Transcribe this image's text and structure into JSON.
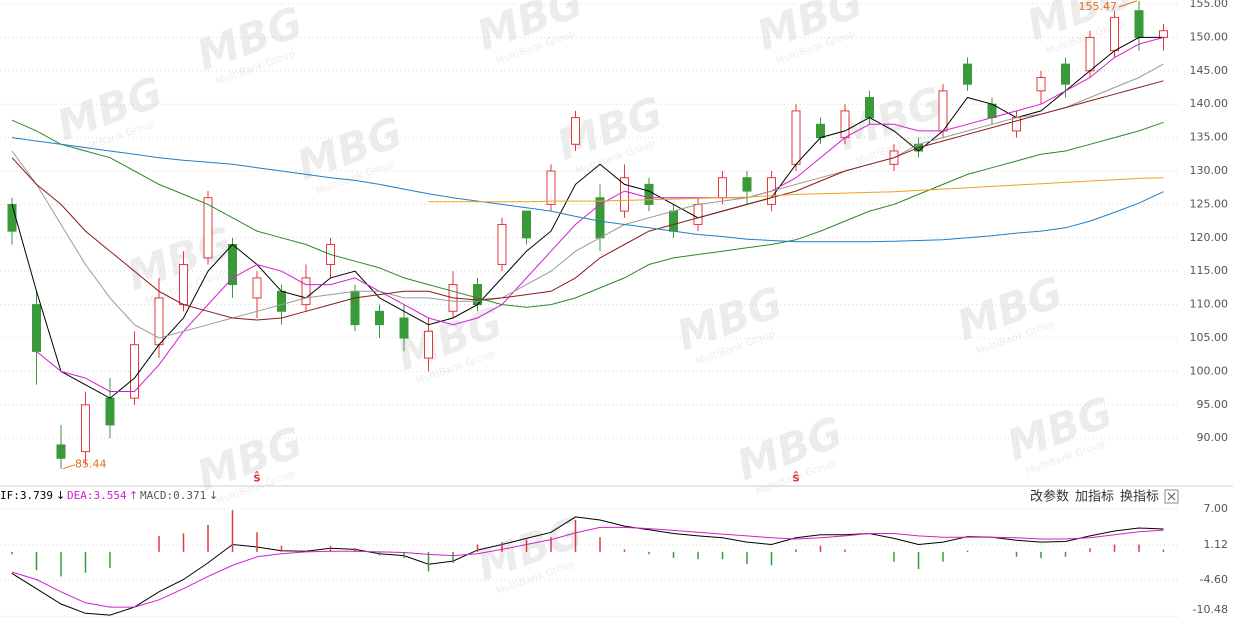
{
  "chart_data": [
    {
      "type": "candlestick",
      "open": [
        125,
        110,
        89,
        88,
        96,
        96,
        104,
        110,
        117,
        119,
        111,
        112,
        110,
        116,
        112,
        109,
        108,
        102,
        109,
        113,
        116,
        124,
        125,
        134,
        126,
        124,
        128,
        124,
        122,
        126,
        129,
        125,
        131,
        137,
        135,
        141,
        131,
        134,
        136,
        146,
        140,
        136,
        142,
        146,
        145,
        148,
        154,
        150
      ],
      "high": [
        126,
        112,
        92,
        97,
        99,
        106,
        114,
        118,
        127,
        120,
        115,
        113,
        116,
        120,
        113,
        110,
        110,
        108,
        115,
        114,
        123,
        124,
        131,
        139,
        128,
        131,
        129,
        125,
        126,
        130,
        130,
        130,
        140,
        138,
        140,
        142,
        134,
        135,
        143,
        147,
        141,
        139,
        145,
        147,
        151,
        154,
        155.47,
        152
      ],
      "low": [
        119,
        98,
        85.44,
        86,
        90,
        95,
        102,
        109,
        116,
        111,
        108,
        107,
        109,
        114,
        106,
        105,
        103,
        100,
        108,
        109,
        115,
        119,
        124,
        133,
        118,
        123,
        124,
        120,
        121,
        125,
        125,
        124,
        130,
        134,
        134,
        137,
        130,
        132,
        135,
        142,
        137,
        135,
        140,
        141,
        144,
        147,
        148,
        148
      ],
      "close": [
        121,
        103,
        87,
        95,
        92,
        104,
        111,
        116,
        126,
        113,
        114,
        109,
        114,
        119,
        107,
        107,
        105,
        106,
        113,
        110,
        122,
        120,
        130,
        138,
        120,
        129,
        125,
        121,
        125,
        129,
        127,
        129,
        139,
        135,
        139,
        138,
        133,
        133,
        142,
        143,
        138,
        138,
        144,
        143,
        150,
        153,
        150,
        151
      ],
      "up_color": "#e0393e",
      "down_color": "#3a9a3a",
      "annotation_color": "#e07020",
      "event_marks": [
        null,
        null,
        null,
        null,
        null,
        null,
        null,
        null,
        null,
        null,
        "ŝ",
        null,
        null,
        null,
        null,
        null,
        null,
        null,
        null,
        null,
        null,
        null,
        null,
        null,
        null,
        null,
        null,
        null,
        null,
        null,
        null,
        null,
        "ŝ",
        null,
        null,
        null,
        null,
        null,
        null,
        null,
        null,
        null,
        null,
        null,
        null,
        null,
        null,
        null
      ],
      "lines": [
        {
          "color": "#000000",
          "values": [
            125,
            112,
            100,
            98,
            96,
            99,
            104,
            108,
            115,
            119,
            116,
            112,
            111,
            114,
            115,
            111,
            109,
            107,
            108,
            110,
            114,
            118,
            121,
            128,
            131,
            128,
            127,
            125,
            123,
            124,
            125,
            126,
            131,
            135,
            136,
            138,
            136,
            133,
            136,
            141,
            140,
            138,
            139,
            142,
            145,
            148,
            150,
            150
          ]
        },
        {
          "color": "#d020d0",
          "values": [
            null,
            103,
            100,
            99,
            97,
            97,
            101,
            106,
            110,
            114,
            116,
            115,
            113,
            113,
            114,
            112,
            110,
            108,
            107,
            108,
            110,
            114,
            118,
            122,
            125,
            127,
            126,
            126,
            126,
            126,
            126,
            127,
            129,
            132,
            135,
            137,
            137,
            136,
            136,
            137,
            138,
            139,
            140,
            142,
            144,
            147,
            149,
            150
          ]
        },
        {
          "color": "#9a9a9a",
          "values": [
            133,
            128,
            122,
            116,
            111,
            107,
            105,
            106,
            107,
            108,
            109,
            110,
            111,
            111.5,
            112,
            112,
            111,
            111,
            110.5,
            110.5,
            111,
            113,
            115,
            118,
            120,
            122,
            123,
            124,
            125,
            125.5,
            126,
            127,
            128,
            129,
            130,
            131,
            132,
            134,
            135,
            136,
            137,
            138,
            138.5,
            139.5,
            141,
            142.5,
            144,
            146
          ]
        },
        {
          "color": "#8b1a1a",
          "values": [
            132,
            128,
            125,
            121,
            118,
            115,
            112,
            110,
            109,
            108,
            107.7,
            108,
            109,
            110,
            111,
            111.5,
            112,
            112,
            111,
            110.7,
            111,
            111.5,
            112,
            114,
            117,
            119,
            121,
            122,
            123,
            124,
            125,
            126,
            127,
            128.5,
            130,
            131,
            132,
            133.5,
            134.5,
            135.5,
            136.5,
            137.5,
            138.5,
            139.5,
            140.5,
            141.5,
            142.5,
            143.5
          ]
        },
        {
          "color": "#2a8a2a",
          "values": [
            137.6,
            136,
            134,
            133,
            132,
            130,
            128,
            126.5,
            125,
            123,
            121,
            120,
            119,
            117.5,
            116.5,
            115.5,
            114,
            113,
            112,
            111,
            110,
            109.6,
            110,
            111,
            112.5,
            114,
            116,
            117,
            117.5,
            118,
            118.5,
            119,
            119.7,
            121,
            122.5,
            124,
            125,
            126.5,
            128,
            129.5,
            130.5,
            131.5,
            132.5,
            133,
            134,
            135,
            136,
            137.3
          ]
        },
        {
          "color": "#1f7fc8",
          "values": [
            135,
            134.5,
            134,
            133.5,
            133,
            132.5,
            132,
            131.6,
            131.3,
            131,
            130.5,
            130,
            129.5,
            129,
            128.6,
            128,
            127.3,
            126.6,
            126,
            125.5,
            125,
            124.5,
            124,
            123.2,
            122.5,
            122,
            121.5,
            121,
            120.5,
            120.2,
            119.8,
            119.6,
            119.4,
            119.4,
            119.4,
            119.4,
            119.5,
            119.6,
            119.7,
            120,
            120.3,
            120.7,
            121,
            121.5,
            122.5,
            123.8,
            125.2,
            126.9
          ]
        },
        {
          "color": "#f0a020",
          "values": [
            null,
            null,
            null,
            null,
            null,
            null,
            null,
            null,
            null,
            null,
            null,
            null,
            null,
            null,
            null,
            null,
            null,
            125.4,
            125.4,
            125.4,
            125.4,
            125.4,
            125.5,
            125.5,
            125.5,
            125.6,
            125.7,
            125.8,
            125.9,
            126,
            126.1,
            126.3,
            126.5,
            126.6,
            126.7,
            126.8,
            126.9,
            127.1,
            127.3,
            127.5,
            127.7,
            127.9,
            128.1,
            128.3,
            128.5,
            128.7,
            128.9,
            129
          ]
        }
      ],
      "ylim": [
        83,
        155.6
      ],
      "yticks": [
        {
          "value": 90,
          "label": "90.00"
        },
        {
          "value": 95,
          "label": "95.00"
        },
        {
          "value": 100,
          "label": "100.00"
        },
        {
          "value": 105,
          "label": "105.00"
        },
        {
          "value": 110,
          "label": "110.00"
        },
        {
          "value": 115,
          "label": "115.00"
        },
        {
          "value": 120,
          "label": "120.00"
        },
        {
          "value": 125,
          "label": "125.00"
        },
        {
          "value": 130,
          "label": "130.00"
        },
        {
          "value": 135,
          "label": "135.00"
        },
        {
          "value": 140,
          "label": "140.00"
        },
        {
          "value": 145,
          "label": "145.00"
        },
        {
          "value": 150,
          "label": "150.00"
        },
        {
          "value": 155,
          "label": "155.00"
        }
      ],
      "grid": true
    },
    {
      "type": "macd",
      "series": [
        {
          "label": "IF:3.739",
          "arrow": "↓",
          "color": "#000000",
          "values": [
            -3.5,
            -6,
            -8.5,
            -10,
            -10.3,
            -9,
            -6.5,
            -4.5,
            -1.8,
            1.2,
            0.8,
            0.2,
            0.1,
            0.6,
            0.4,
            -0.3,
            -0.6,
            -2,
            -1.5,
            0.3,
            1.2,
            2.2,
            3.2,
            5.7,
            5.2,
            4.2,
            3.6,
            3,
            2.6,
            2.3,
            1.6,
            1.2,
            2.3,
            2.8,
            2.8,
            3,
            2.2,
            1.2,
            1.6,
            2.5,
            2.4,
            1.9,
            1.6,
            1.7,
            2.6,
            3.4,
            3.9,
            3.739
          ]
        },
        {
          "label": "DEA:3.554",
          "arrow": "↑",
          "color": "#d020d0",
          "values": [
            -3.3,
            -4.5,
            -6.5,
            -8.3,
            -9,
            -9,
            -7.8,
            -6,
            -4,
            -2.2,
            -0.8,
            -0.3,
            0,
            0.1,
            0.1,
            0,
            -0.1,
            -0.4,
            -0.6,
            -0.3,
            0.4,
            1.2,
            2,
            3.1,
            4,
            4,
            3.8,
            3.5,
            3.2,
            2.9,
            2.6,
            2.3,
            2.1,
            2.3,
            2.6,
            3,
            3,
            2.6,
            2.4,
            2.4,
            2.4,
            2.3,
            2.1,
            2.1,
            2.3,
            2.8,
            3.3,
            3.554
          ]
        },
        {
          "label": "MACD:0.371",
          "arrow": "↓",
          "color": "#555555",
          "kind": "bar",
          "values": [
            -0.4,
            -3,
            -4,
            -3.4,
            -2.6,
            0,
            2.6,
            3,
            4.4,
            6.8,
            3.2,
            1,
            0.2,
            1,
            0.6,
            -0.6,
            -1,
            -3.2,
            -1.8,
            1.2,
            1.6,
            2,
            2.4,
            5.2,
            2.4,
            0.4,
            -0.4,
            -1,
            -1.2,
            -1.2,
            -2,
            -2.2,
            0.4,
            1,
            0.4,
            0,
            -1.6,
            -2.8,
            -1.6,
            0.2,
            0,
            -0.8,
            -1,
            -0.8,
            0.6,
            1.2,
            1.2,
            0.371
          ]
        }
      ],
      "up_color": "#e0393e",
      "down_color": "#3a9a3a",
      "ylim": [
        -11.1,
        9.6
      ],
      "yticks": [
        {
          "value": 7,
          "label": "7.00"
        },
        {
          "value": 1.12,
          "label": "1.12"
        },
        {
          "value": -4.6,
          "label": "-4.60"
        },
        {
          "value": -10.48,
          "label": "-10.48"
        }
      ],
      "grid": true,
      "toolbar": [
        "改参数",
        "加指标",
        "换指标"
      ]
    }
  ],
  "watermark": {
    "logo": "MBG",
    "text": "MultiBank Group"
  }
}
